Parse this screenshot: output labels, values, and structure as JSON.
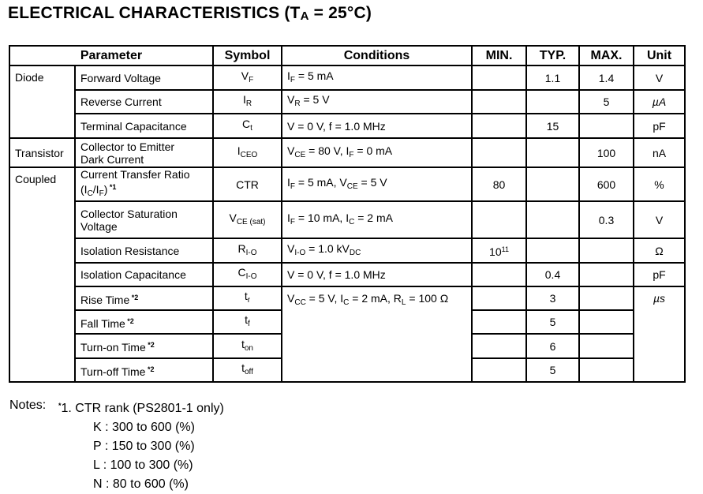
{
  "title": {
    "text": "ELECTRICAL  CHARACTERISTICS (T",
    "sub": "A",
    "rest": " = 25°C)"
  },
  "headers": [
    "Parameter",
    "Symbol",
    "Conditions",
    "MIN.",
    "TYP.",
    "MAX.",
    "Unit"
  ],
  "rows": [
    {
      "group": "Diode",
      "group_span": 3,
      "param": [
        {
          "t": "Forward Voltage"
        }
      ],
      "symbol": [
        {
          "t": "V"
        },
        {
          "s": "F"
        }
      ],
      "cond": [
        {
          "t": "I"
        },
        {
          "s": "F"
        },
        {
          "t": " = 5 mA"
        }
      ],
      "min": "",
      "typ": "1.1",
      "max": "1.4",
      "unit": "V",
      "h": 31
    },
    {
      "param": [
        {
          "t": "Reverse Current"
        }
      ],
      "symbol": [
        {
          "t": "I"
        },
        {
          "s": "R"
        }
      ],
      "cond": [
        {
          "t": "V"
        },
        {
          "s": "R"
        },
        {
          "t": " = 5 V"
        }
      ],
      "min": "",
      "typ": "",
      "max": "5",
      "unit": "µA",
      "unit_italic": true,
      "h": 30
    },
    {
      "param": [
        {
          "t": "Terminal Capacitance"
        }
      ],
      "symbol": [
        {
          "t": "C"
        },
        {
          "s": "t"
        }
      ],
      "cond": [
        {
          "t": "V = 0 V, f = 1.0 MHz"
        }
      ],
      "min": "",
      "typ": "15",
      "max": "",
      "unit": "pF",
      "h": 31
    },
    {
      "group": "Transistor",
      "group_span": 1,
      "param": [
        {
          "t": "Collector to Emitter"
        },
        {
          "br": 1
        },
        {
          "t": "Dark Current"
        }
      ],
      "symbol": [
        {
          "t": "I"
        },
        {
          "s": "CEO"
        }
      ],
      "cond": [
        {
          "t": "V"
        },
        {
          "s": "CE"
        },
        {
          "t": " = 80 V, I"
        },
        {
          "s": "F"
        },
        {
          "t": " = 0 mA"
        }
      ],
      "min": "",
      "typ": "",
      "max": "100",
      "unit": "nA",
      "h": 37
    },
    {
      "group": "Coupled",
      "group_span": 9,
      "param": [
        {
          "t": "Current Transfer Ratio"
        },
        {
          "br": 1
        },
        {
          "t": "(I"
        },
        {
          "s": "C"
        },
        {
          "t": "/I"
        },
        {
          "s": "F"
        },
        {
          "t": ")"
        },
        {
          "p": " *1"
        }
      ],
      "symbol": [
        {
          "t": "CTR"
        }
      ],
      "cond": [
        {
          "t": "I"
        },
        {
          "s": "F"
        },
        {
          "t": " = 5 mA, V"
        },
        {
          "s": "CE"
        },
        {
          "t": " = 5 V"
        }
      ],
      "min": "80",
      "typ": "",
      "max": "600",
      "unit": "%",
      "h": 39
    },
    {
      "param": [
        {
          "t": "Collector Saturation"
        },
        {
          "br": 1
        },
        {
          "t": "Voltage"
        }
      ],
      "symbol": [
        {
          "t": "V"
        },
        {
          "s": "CE (sat)"
        }
      ],
      "cond": [
        {
          "t": "I"
        },
        {
          "s": "F"
        },
        {
          "t": " = 10 mA, I"
        },
        {
          "s": "C"
        },
        {
          "t": " = 2 mA"
        }
      ],
      "min": "",
      "typ": "",
      "max": "0.3",
      "unit": "V",
      "h": 47
    },
    {
      "param": [
        {
          "t": "Isolation Resistance"
        }
      ],
      "symbol": [
        {
          "t": "R"
        },
        {
          "s": "I-O"
        }
      ],
      "cond": [
        {
          "t": "V"
        },
        {
          "s": "I-O"
        },
        {
          "t": " = 1.0 kV"
        },
        {
          "s": "DC"
        }
      ],
      "min": "10",
      "min_exp": "11",
      "typ": "",
      "max": "",
      "unit": "Ω",
      "h": 31
    },
    {
      "param": [
        {
          "t": "Isolation Capacitance"
        }
      ],
      "symbol": [
        {
          "t": "C"
        },
        {
          "s": "I-O"
        }
      ],
      "cond": [
        {
          "t": "V = 0 V, f = 1.0 MHz"
        }
      ],
      "min": "",
      "typ": "0.4",
      "max": "",
      "unit": "pF",
      "h": 30
    },
    {
      "param": [
        {
          "t": "Rise Time"
        },
        {
          "p": " *2"
        }
      ],
      "symbol": [
        {
          "t": "t"
        },
        {
          "s": "r"
        }
      ],
      "cond": [
        {
          "t": "V"
        },
        {
          "s": "CC"
        },
        {
          "t": " = 5 V, I"
        },
        {
          "s": "C"
        },
        {
          "t": " = 2 mA, R"
        },
        {
          "s": "L"
        },
        {
          "t": " = 100 Ω"
        }
      ],
      "cond_span": 4,
      "min": "",
      "typ": "3",
      "max": "",
      "unit": "µs",
      "unit_italic": true,
      "unit_span": 4,
      "h": 30
    },
    {
      "param": [
        {
          "t": "Fall Time"
        },
        {
          "p": " *2"
        }
      ],
      "symbol": [
        {
          "t": "t"
        },
        {
          "s": "f"
        }
      ],
      "min": "",
      "typ": "5",
      "max": "",
      "h": 30
    },
    {
      "param": [
        {
          "t": "Turn-on Time"
        },
        {
          "p": " *2"
        }
      ],
      "symbol": [
        {
          "t": "t"
        },
        {
          "s": "on"
        }
      ],
      "min": "",
      "typ": "6",
      "max": "",
      "h": 31
    },
    {
      "param": [
        {
          "t": "Turn-off Time"
        },
        {
          "p": " *2"
        }
      ],
      "symbol": [
        {
          "t": "t"
        },
        {
          "s": "off"
        }
      ],
      "min": "",
      "typ": "5",
      "max": "",
      "h": 30
    }
  ],
  "notes": {
    "label": "Notes:",
    "marker": "*",
    "first": "1.  CTR rank (PS2801-1 only)",
    "ranks": [
      "K : 300 to 600 (%)",
      "P : 150 to 300 (%)",
      "L : 100 to 300 (%)",
      "N : 80 to 600 (%)"
    ]
  }
}
